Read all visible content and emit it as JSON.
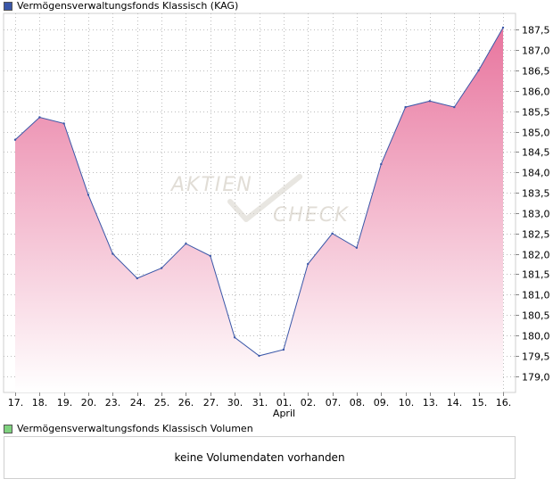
{
  "price_legend": {
    "label": "Vermögensverwaltungsfonds Klassisch (KAG)",
    "color": "#3a57a8"
  },
  "volume_legend": {
    "label": "Vermögensverwaltungsfonds Klassisch Volumen",
    "color": "#7fd27f"
  },
  "volume_panel": {
    "message": "keine Volumendaten vorhanden"
  },
  "watermark": {
    "line1": "AKTIEN",
    "line2": "CHECK"
  },
  "chart_data": {
    "type": "area",
    "x": [
      "17.",
      "18.",
      "19.",
      "20.",
      "23.",
      "24.",
      "25.",
      "26.",
      "27.",
      "30.",
      "31.",
      "01.",
      "02.",
      "07.",
      "08.",
      "09.",
      "10.",
      "13.",
      "14.",
      "15.",
      "16."
    ],
    "x_sublabels": {
      "01.": "April"
    },
    "series": [
      {
        "values": [
          184.8,
          185.35,
          185.2,
          183.45,
          182.0,
          181.4,
          181.65,
          182.25,
          181.95,
          179.95,
          179.5,
          179.65,
          181.75,
          182.5,
          182.15,
          184.2,
          185.6,
          185.75,
          185.6,
          186.5,
          187.55
        ]
      }
    ],
    "y_ticks": [
      179.0,
      179.5,
      180.0,
      180.5,
      181.0,
      181.5,
      182.0,
      182.5,
      183.0,
      183.5,
      184.0,
      184.5,
      185.0,
      185.5,
      186.0,
      186.5,
      187.0,
      187.5
    ],
    "y_tick_labels": [
      "179,0",
      "179,5",
      "180,0",
      "180,5",
      "181,0",
      "181,5",
      "182,0",
      "182,5",
      "183,0",
      "183,5",
      "184,0",
      "184,5",
      "185,0",
      "185,5",
      "186,0",
      "186,5",
      "187,0",
      "187,5"
    ],
    "ylim": [
      178.6,
      187.9
    ],
    "y_axis_side": "right",
    "grid": true,
    "line_color": "#3a57a8",
    "fill_top_color": "#e8759e",
    "fill_bottom_color": "#ffffff"
  }
}
